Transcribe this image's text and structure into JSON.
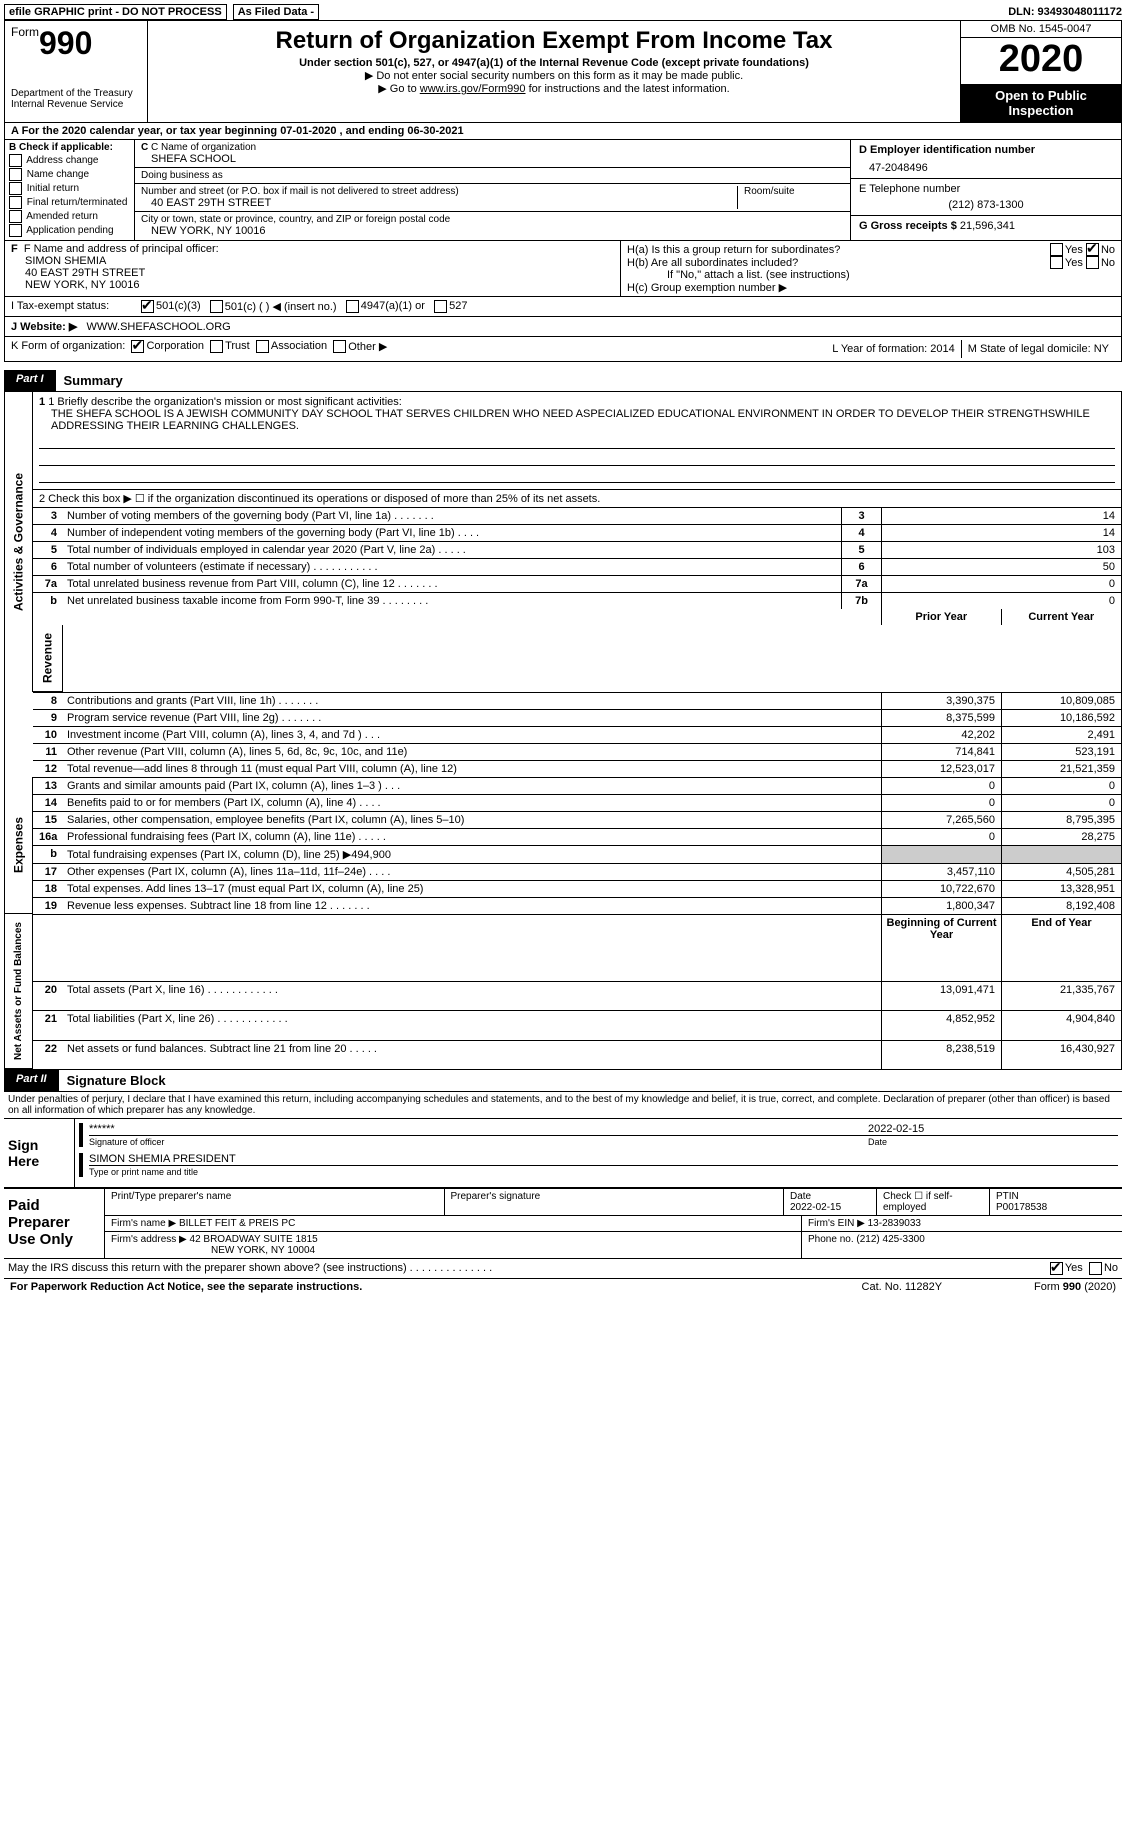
{
  "topbar": {
    "efile": "efile GRAPHIC print - DO NOT PROCESS",
    "asfiled": "As Filed Data -",
    "dln": "DLN: 93493048011172"
  },
  "header": {
    "form_prefix": "Form",
    "form_number": "990",
    "dept": "Department of the Treasury\nInternal Revenue Service",
    "title": "Return of Organization Exempt From Income Tax",
    "subtitle": "Under section 501(c), 527, or 4947(a)(1) of the Internal Revenue Code (except private foundations)",
    "note1": "▶ Do not enter social security numbers on this form as it may be made public.",
    "note2_pre": "▶ Go to ",
    "note2_link": "www.irs.gov/Form990",
    "note2_post": " for instructions and the latest information.",
    "omb": "OMB No. 1545-0047",
    "year": "2020",
    "inspect": "Open to Public Inspection"
  },
  "rowA": "A   For the 2020 calendar year, or tax year beginning 07-01-2020   , and ending 06-30-2021",
  "boxB": {
    "label": "B Check if applicable:",
    "opts": [
      "Address change",
      "Name change",
      "Initial return",
      "Final return/terminated",
      "Amended return",
      "Application pending"
    ]
  },
  "boxC": {
    "name_label": "C Name of organization",
    "name": "SHEFA SCHOOL",
    "dba_label": "Doing business as",
    "dba": "",
    "addr_label": "Number and street (or P.O. box if mail is not delivered to street address)",
    "room_label": "Room/suite",
    "addr": "40 EAST 29TH STREET",
    "city_label": "City or town, state or province, country, and ZIP or foreign postal code",
    "city": "NEW YORK, NY  10016"
  },
  "boxD": {
    "label": "D Employer identification number",
    "value": "47-2048496"
  },
  "boxE": {
    "label": "E Telephone number",
    "value": "(212) 873-1300"
  },
  "boxG": {
    "label": "G Gross receipts $",
    "value": "21,596,341"
  },
  "boxF": {
    "label": "F  Name and address of principal officer:",
    "name": "SIMON SHEMIA",
    "addr1": "40 EAST 29TH STREET",
    "addr2": "NEW YORK, NY  10016"
  },
  "boxH": {
    "a_label": "H(a)  Is this a group return for subordinates?",
    "b_label": "H(b)  Are all subordinates included?",
    "note": "If \"No,\" attach a list. (see instructions)",
    "c_label": "H(c)  Group exemption number ▶"
  },
  "rowI": {
    "label": "I   Tax-exempt status:",
    "opts": [
      "501(c)(3)",
      "501(c) (   ) ◀ (insert no.)",
      "4947(a)(1) or",
      "527"
    ]
  },
  "rowJ": {
    "label": "J   Website: ▶",
    "value": "WWW.SHEFASCHOOL.ORG"
  },
  "rowK": {
    "label": "K Form of organization:",
    "opts": [
      "Corporation",
      "Trust",
      "Association",
      "Other ▶"
    ],
    "L": "L Year of formation: 2014",
    "M": "M State of legal domicile: NY"
  },
  "part1": {
    "tag": "Part I",
    "title": "Summary"
  },
  "summary": {
    "mission_label": "1 Briefly describe the organization's mission or most significant activities:",
    "mission": "THE SHEFA SCHOOL IS A JEWISH COMMUNITY DAY SCHOOL THAT SERVES CHILDREN WHO NEED ASPECIALIZED EDUCATIONAL ENVIRONMENT IN ORDER TO DEVELOP THEIR STRENGTHSWHILE ADDRESSING THEIR LEARNING CHALLENGES.",
    "line2": "2   Check this box ▶ ☐ if the organization discontinued its operations or disposed of more than 25% of its net assets.",
    "sideA": "Activities & Governance",
    "sideR": "Revenue",
    "sideE": "Expenses",
    "sideN": "Net Assets or Fund Balances",
    "hdr_prior": "Prior Year",
    "hdr_curr": "Current Year",
    "hdr_beg": "Beginning of Current Year",
    "hdr_end": "End of Year",
    "rows_gov": [
      {
        "n": "3",
        "d": "Number of voting members of the governing body (Part VI, line 1a)   .   .   .   .   .   .   .",
        "c": "3",
        "v": "14"
      },
      {
        "n": "4",
        "d": "Number of independent voting members of the governing body (Part VI, line 1b)   .   .   .   .",
        "c": "4",
        "v": "14"
      },
      {
        "n": "5",
        "d": "Total number of individuals employed in calendar year 2020 (Part V, line 2a)   .   .   .   .   .",
        "c": "5",
        "v": "103"
      },
      {
        "n": "6",
        "d": "Total number of volunteers (estimate if necessary)   .   .   .   .   .   .   .   .   .   .   .",
        "c": "6",
        "v": "50"
      },
      {
        "n": "7a",
        "d": "Total unrelated business revenue from Part VIII, column (C), line 12   .   .   .   .   .   .   .",
        "c": "7a",
        "v": "0"
      },
      {
        "n": "b",
        "d": "Net unrelated business taxable income from Form 990-T, line 39   .   .   .   .   .   .   .   .",
        "c": "7b",
        "v": "0"
      }
    ],
    "rows_rev": [
      {
        "n": "8",
        "d": "Contributions and grants (Part VIII, line 1h)   .   .   .   .   .   .   .",
        "p": "3,390,375",
        "c": "10,809,085"
      },
      {
        "n": "9",
        "d": "Program service revenue (Part VIII, line 2g)   .   .   .   .   .   .   .",
        "p": "8,375,599",
        "c": "10,186,592"
      },
      {
        "n": "10",
        "d": "Investment income (Part VIII, column (A), lines 3, 4, and 7d )   .   .   .",
        "p": "42,202",
        "c": "2,491"
      },
      {
        "n": "11",
        "d": "Other revenue (Part VIII, column (A), lines 5, 6d, 8c, 9c, 10c, and 11e)",
        "p": "714,841",
        "c": "523,191"
      },
      {
        "n": "12",
        "d": "Total revenue—add lines 8 through 11 (must equal Part VIII, column (A), line 12)",
        "p": "12,523,017",
        "c": "21,521,359"
      }
    ],
    "rows_exp": [
      {
        "n": "13",
        "d": "Grants and similar amounts paid (Part IX, column (A), lines 1–3 )   .   .   .",
        "p": "0",
        "c": "0"
      },
      {
        "n": "14",
        "d": "Benefits paid to or for members (Part IX, column (A), line 4)   .   .   .   .",
        "p": "0",
        "c": "0"
      },
      {
        "n": "15",
        "d": "Salaries, other compensation, employee benefits (Part IX, column (A), lines 5–10)",
        "p": "7,265,560",
        "c": "8,795,395"
      },
      {
        "n": "16a",
        "d": "Professional fundraising fees (Part IX, column (A), line 11e)   .   .   .   .   .",
        "p": "0",
        "c": "28,275"
      },
      {
        "n": "b",
        "d": "Total fundraising expenses (Part IX, column (D), line 25) ▶494,900",
        "p": "",
        "c": ""
      },
      {
        "n": "17",
        "d": "Other expenses (Part IX, column (A), lines 11a–11d, 11f–24e)   .   .   .   .",
        "p": "3,457,110",
        "c": "4,505,281"
      },
      {
        "n": "18",
        "d": "Total expenses. Add lines 13–17 (must equal Part IX, column (A), line 25)",
        "p": "10,722,670",
        "c": "13,328,951"
      },
      {
        "n": "19",
        "d": "Revenue less expenses. Subtract line 18 from line 12   .   .   .   .   .   .   .",
        "p": "1,800,347",
        "c": "8,192,408"
      }
    ],
    "rows_net": [
      {
        "n": "20",
        "d": "Total assets (Part X, line 16)   .   .   .   .   .   .   .   .   .   .   .   .",
        "p": "13,091,471",
        "c": "21,335,767"
      },
      {
        "n": "21",
        "d": "Total liabilities (Part X, line 26)   .   .   .   .   .   .   .   .   .   .   .   .",
        "p": "4,852,952",
        "c": "4,904,840"
      },
      {
        "n": "22",
        "d": "Net assets or fund balances. Subtract line 21 from line 20   .   .   .   .   .",
        "p": "8,238,519",
        "c": "16,430,927"
      }
    ]
  },
  "part2": {
    "tag": "Part II",
    "title": "Signature Block"
  },
  "sig": {
    "decl": "Under penalties of perjury, I declare that I have examined this return, including accompanying schedules and statements, and to the best of my knowledge and belief, it is true, correct, and complete. Declaration of preparer (other than officer) is based on all information of which preparer has any knowledge.",
    "sign_here": "Sign Here",
    "stars": "******",
    "sig_officer": "Signature of officer",
    "date": "2022-02-15",
    "date_lbl": "Date",
    "name_title": "SIMON SHEMIA PRESIDENT",
    "name_title_lbl": "Type or print name and title",
    "paid": "Paid Preparer Use Only",
    "prep_name_lbl": "Print/Type preparer's name",
    "prep_sig_lbl": "Preparer's signature",
    "prep_date_lbl": "Date",
    "prep_date": "2022-02-15",
    "check_self": "Check ☐ if self-employed",
    "ptin_lbl": "PTIN",
    "ptin": "P00178538",
    "firm_name_lbl": "Firm's name   ▶",
    "firm_name": "BILLET FEIT & PREIS PC",
    "firm_ein_lbl": "Firm's EIN ▶",
    "firm_ein": "13-2839033",
    "firm_addr_lbl": "Firm's address ▶",
    "firm_addr": "42 BROADWAY SUITE 1815",
    "firm_city": "NEW YORK, NY  10004",
    "phone_lbl": "Phone no.",
    "phone": "(212) 425-3300",
    "discuss": "May the IRS discuss this return with the preparer shown above? (see instructions)   .   .   .   .   .   .   .   .   .   .   .   .   .   .",
    "yes": "Yes",
    "no": "No"
  },
  "footer": {
    "left": "For Paperwork Reduction Act Notice, see the separate instructions.",
    "mid": "Cat. No. 11282Y",
    "right": "Form 990 (2020)"
  }
}
